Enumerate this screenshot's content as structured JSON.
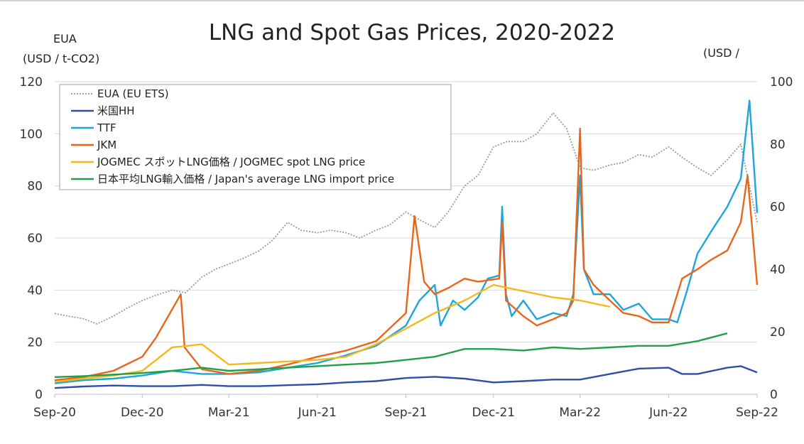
{
  "chart_data": {
    "type": "line",
    "title": "LNG and Spot Gas Prices, 2020-2022",
    "left_axis_label_1": "EUA",
    "left_axis_label_2": "(USD / t-CO2)",
    "right_axis_label": "(USD /",
    "y_left_range": [
      0,
      120
    ],
    "y_right_range": [
      0,
      100
    ],
    "y_left_ticks": [
      "0",
      "20",
      "40",
      "60",
      "80",
      "100",
      "120"
    ],
    "y_right_ticks": [
      "0",
      "20",
      "40",
      "60",
      "80",
      "100"
    ],
    "x_range": [
      "2020-09-01",
      "2022-09-01"
    ],
    "x_ticks": [
      {
        "date": "2020-09-01",
        "label": "Sep-20"
      },
      {
        "date": "2020-12-01",
        "label": "Dec-20"
      },
      {
        "date": "2021-03-01",
        "label": "Mar-21"
      },
      {
        "date": "2021-06-01",
        "label": "Jun-21"
      },
      {
        "date": "2021-09-01",
        "label": "Sep-21"
      },
      {
        "date": "2021-12-01",
        "label": "Dec-21"
      },
      {
        "date": "2022-03-01",
        "label": "Mar-22"
      },
      {
        "date": "2022-06-01",
        "label": "Jun-22"
      },
      {
        "date": "2022-09-01",
        "label": "Sep-22"
      }
    ],
    "grid": true,
    "legend_position": "top-left",
    "series": [
      {
        "name": "EUA (EU ETS)",
        "axis": "left",
        "color": "#9a9a9a",
        "dashed": true,
        "points": [
          [
            "2020-09-01",
            31
          ],
          [
            "2020-09-15",
            30
          ],
          [
            "2020-10-01",
            29
          ],
          [
            "2020-10-15",
            27
          ],
          [
            "2020-11-01",
            30
          ],
          [
            "2020-11-15",
            33
          ],
          [
            "2020-12-01",
            36
          ],
          [
            "2020-12-15",
            38
          ],
          [
            "2021-01-01",
            40
          ],
          [
            "2021-01-15",
            39
          ],
          [
            "2021-02-01",
            45
          ],
          [
            "2021-02-15",
            48
          ],
          [
            "2021-03-01",
            50
          ],
          [
            "2021-03-15",
            52
          ],
          [
            "2021-04-01",
            55
          ],
          [
            "2021-04-15",
            59
          ],
          [
            "2021-05-01",
            66
          ],
          [
            "2021-05-15",
            63
          ],
          [
            "2021-06-01",
            62
          ],
          [
            "2021-06-15",
            63
          ],
          [
            "2021-07-01",
            62
          ],
          [
            "2021-07-15",
            60
          ],
          [
            "2021-08-01",
            63
          ],
          [
            "2021-08-15",
            65
          ],
          [
            "2021-09-01",
            70
          ],
          [
            "2021-09-15",
            67
          ],
          [
            "2021-10-01",
            64
          ],
          [
            "2021-10-15",
            70
          ],
          [
            "2021-11-01",
            80
          ],
          [
            "2021-11-15",
            84
          ],
          [
            "2021-12-01",
            95
          ],
          [
            "2021-12-15",
            97
          ],
          [
            "2022-01-01",
            97
          ],
          [
            "2022-01-15",
            100
          ],
          [
            "2022-02-01",
            108
          ],
          [
            "2022-02-15",
            102
          ],
          [
            "2022-03-01",
            87
          ],
          [
            "2022-03-15",
            86
          ],
          [
            "2022-04-01",
            88
          ],
          [
            "2022-04-15",
            89
          ],
          [
            "2022-05-01",
            92
          ],
          [
            "2022-05-15",
            91
          ],
          [
            "2022-06-01",
            95
          ],
          [
            "2022-06-15",
            91
          ],
          [
            "2022-07-01",
            87
          ],
          [
            "2022-07-15",
            84
          ],
          [
            "2022-08-01",
            90
          ],
          [
            "2022-08-15",
            96
          ],
          [
            "2022-09-01",
            66
          ]
        ]
      },
      {
        "name": "米国HH",
        "axis": "right",
        "color": "#2e4ea8",
        "dashed": false,
        "points": [
          [
            "2020-09-01",
            2.0
          ],
          [
            "2020-10-01",
            2.5
          ],
          [
            "2020-11-01",
            2.8
          ],
          [
            "2020-12-01",
            2.6
          ],
          [
            "2021-01-01",
            2.6
          ],
          [
            "2021-02-01",
            3.0
          ],
          [
            "2021-03-01",
            2.6
          ],
          [
            "2021-04-01",
            2.6
          ],
          [
            "2021-05-01",
            2.9
          ],
          [
            "2021-06-01",
            3.2
          ],
          [
            "2021-07-01",
            3.8
          ],
          [
            "2021-08-01",
            4.2
          ],
          [
            "2021-09-01",
            5.2
          ],
          [
            "2021-10-01",
            5.6
          ],
          [
            "2021-11-01",
            5.0
          ],
          [
            "2021-12-01",
            3.8
          ],
          [
            "2022-01-01",
            4.2
          ],
          [
            "2022-02-01",
            4.7
          ],
          [
            "2022-03-01",
            4.7
          ],
          [
            "2022-04-01",
            6.5
          ],
          [
            "2022-05-01",
            8.2
          ],
          [
            "2022-06-01",
            8.5
          ],
          [
            "2022-06-15",
            6.5
          ],
          [
            "2022-07-01",
            6.5
          ],
          [
            "2022-08-01",
            8.5
          ],
          [
            "2022-08-15",
            9.0
          ],
          [
            "2022-09-01",
            7.0
          ]
        ]
      },
      {
        "name": "TTF",
        "axis": "right",
        "color": "#1ea5dc",
        "dashed": false,
        "points": [
          [
            "2020-09-01",
            3.5
          ],
          [
            "2020-10-01",
            4.5
          ],
          [
            "2020-11-01",
            5.0
          ],
          [
            "2020-12-01",
            6.0
          ],
          [
            "2021-01-01",
            7.5
          ],
          [
            "2021-02-01",
            6.5
          ],
          [
            "2021-03-01",
            6.5
          ],
          [
            "2021-04-01",
            7.0
          ],
          [
            "2021-05-01",
            8.5
          ],
          [
            "2021-06-01",
            10.0
          ],
          [
            "2021-07-01",
            12.5
          ],
          [
            "2021-08-01",
            15.5
          ],
          [
            "2021-09-01",
            22.0
          ],
          [
            "2021-09-15",
            30.0
          ],
          [
            "2021-10-01",
            35.0
          ],
          [
            "2021-10-07",
            22.0
          ],
          [
            "2021-10-20",
            30.0
          ],
          [
            "2021-11-01",
            27.0
          ],
          [
            "2021-11-15",
            31.0
          ],
          [
            "2021-11-25",
            37.0
          ],
          [
            "2021-12-07",
            38.0
          ],
          [
            "2021-12-10",
            60.0
          ],
          [
            "2021-12-14",
            32.0
          ],
          [
            "2021-12-20",
            25.0
          ],
          [
            "2022-01-01",
            30.0
          ],
          [
            "2022-01-15",
            24.0
          ],
          [
            "2022-02-01",
            26.0
          ],
          [
            "2022-02-15",
            25.0
          ],
          [
            "2022-02-22",
            32.0
          ],
          [
            "2022-03-01",
            70.0
          ],
          [
            "2022-03-05",
            40.0
          ],
          [
            "2022-03-15",
            32.0
          ],
          [
            "2022-04-01",
            32.0
          ],
          [
            "2022-04-15",
            27.0
          ],
          [
            "2022-05-01",
            29.0
          ],
          [
            "2022-05-15",
            24.0
          ],
          [
            "2022-06-01",
            24.0
          ],
          [
            "2022-06-10",
            23.0
          ],
          [
            "2022-06-20",
            33.0
          ],
          [
            "2022-07-01",
            45.0
          ],
          [
            "2022-07-15",
            52.0
          ],
          [
            "2022-08-01",
            60.0
          ],
          [
            "2022-08-15",
            69.0
          ],
          [
            "2022-08-24",
            94.0
          ],
          [
            "2022-09-01",
            58.0
          ]
        ]
      },
      {
        "name": "JKM",
        "axis": "right",
        "color": "#e8651a",
        "dashed": false,
        "points": [
          [
            "2020-09-01",
            4.5
          ],
          [
            "2020-10-01",
            5.5
          ],
          [
            "2020-11-01",
            7.5
          ],
          [
            "2020-12-01",
            12.0
          ],
          [
            "2020-12-15",
            18.0
          ],
          [
            "2021-01-10",
            32.0
          ],
          [
            "2021-01-14",
            15.0
          ],
          [
            "2021-02-01",
            8.0
          ],
          [
            "2021-03-01",
            6.5
          ],
          [
            "2021-04-01",
            7.5
          ],
          [
            "2021-05-01",
            9.5
          ],
          [
            "2021-06-01",
            12.0
          ],
          [
            "2021-07-01",
            14.0
          ],
          [
            "2021-08-01",
            17.0
          ],
          [
            "2021-09-01",
            26.0
          ],
          [
            "2021-09-10",
            57.0
          ],
          [
            "2021-09-20",
            36.0
          ],
          [
            "2021-10-01",
            32.0
          ],
          [
            "2021-10-15",
            34.0
          ],
          [
            "2021-11-01",
            37.0
          ],
          [
            "2021-11-15",
            36.0
          ],
          [
            "2021-12-07",
            37.0
          ],
          [
            "2021-12-10",
            55.0
          ],
          [
            "2021-12-14",
            30.0
          ],
          [
            "2022-01-01",
            25.0
          ],
          [
            "2022-01-15",
            22.0
          ],
          [
            "2022-02-01",
            24.0
          ],
          [
            "2022-02-15",
            26.0
          ],
          [
            "2022-02-22",
            30.0
          ],
          [
            "2022-03-01",
            85.0
          ],
          [
            "2022-03-05",
            40.0
          ],
          [
            "2022-03-15",
            35.0
          ],
          [
            "2022-04-01",
            30.0
          ],
          [
            "2022-04-15",
            26.0
          ],
          [
            "2022-05-01",
            25.0
          ],
          [
            "2022-05-15",
            23.0
          ],
          [
            "2022-06-01",
            23.0
          ],
          [
            "2022-06-15",
            37.0
          ],
          [
            "2022-07-01",
            40.0
          ],
          [
            "2022-07-15",
            43.0
          ],
          [
            "2022-08-01",
            46.0
          ],
          [
            "2022-08-15",
            55.0
          ],
          [
            "2022-08-22",
            70.0
          ],
          [
            "2022-09-01",
            35.0
          ]
        ]
      },
      {
        "name": "JOGMEC スポットLNG価格 / JOGMEC spot LNG price",
        "axis": "right",
        "color": "#f5b81c",
        "dashed": false,
        "points": [
          [
            "2020-09-01",
            4.0
          ],
          [
            "2020-10-01",
            5.0
          ],
          [
            "2020-11-01",
            6.0
          ],
          [
            "2020-12-01",
            7.5
          ],
          [
            "2021-01-01",
            15.0
          ],
          [
            "2021-02-01",
            16.0
          ],
          [
            "2021-03-01",
            9.5
          ],
          [
            "2021-04-01",
            10.0
          ],
          [
            "2021-05-01",
            10.5
          ],
          [
            "2021-06-01",
            11.0
          ],
          [
            "2021-07-01",
            12.0
          ],
          [
            "2021-08-01",
            16.0
          ],
          [
            "2021-09-01",
            21.0
          ],
          [
            "2021-10-01",
            26.0
          ],
          [
            "2021-11-01",
            30.0
          ],
          [
            "2021-12-01",
            35.0
          ],
          [
            "2022-01-01",
            33.0
          ],
          [
            "2022-02-01",
            31.0
          ],
          [
            "2022-03-01",
            30.0
          ],
          [
            "2022-04-01",
            28.0
          ]
        ]
      },
      {
        "name": "日本平均LNG輸入価格 / Japan's average LNG import price",
        "axis": "right",
        "color": "#21a04a",
        "dashed": false,
        "points": [
          [
            "2020-09-01",
            5.5
          ],
          [
            "2020-10-01",
            5.8
          ],
          [
            "2020-11-01",
            6.3
          ],
          [
            "2020-12-01",
            6.8
          ],
          [
            "2021-01-01",
            7.5
          ],
          [
            "2021-02-01",
            8.5
          ],
          [
            "2021-03-01",
            7.5
          ],
          [
            "2021-04-01",
            8.0
          ],
          [
            "2021-05-01",
            8.5
          ],
          [
            "2021-06-01",
            9.0
          ],
          [
            "2021-07-01",
            9.5
          ],
          [
            "2021-08-01",
            10.0
          ],
          [
            "2021-09-01",
            11.0
          ],
          [
            "2021-10-01",
            12.0
          ],
          [
            "2021-11-01",
            14.5
          ],
          [
            "2021-12-01",
            14.5
          ],
          [
            "2022-01-01",
            14.0
          ],
          [
            "2022-02-01",
            15.0
          ],
          [
            "2022-03-01",
            14.5
          ],
          [
            "2022-04-01",
            15.0
          ],
          [
            "2022-05-01",
            15.5
          ],
          [
            "2022-06-01",
            15.5
          ],
          [
            "2022-07-01",
            17.0
          ],
          [
            "2022-08-01",
            19.5
          ]
        ]
      }
    ]
  }
}
